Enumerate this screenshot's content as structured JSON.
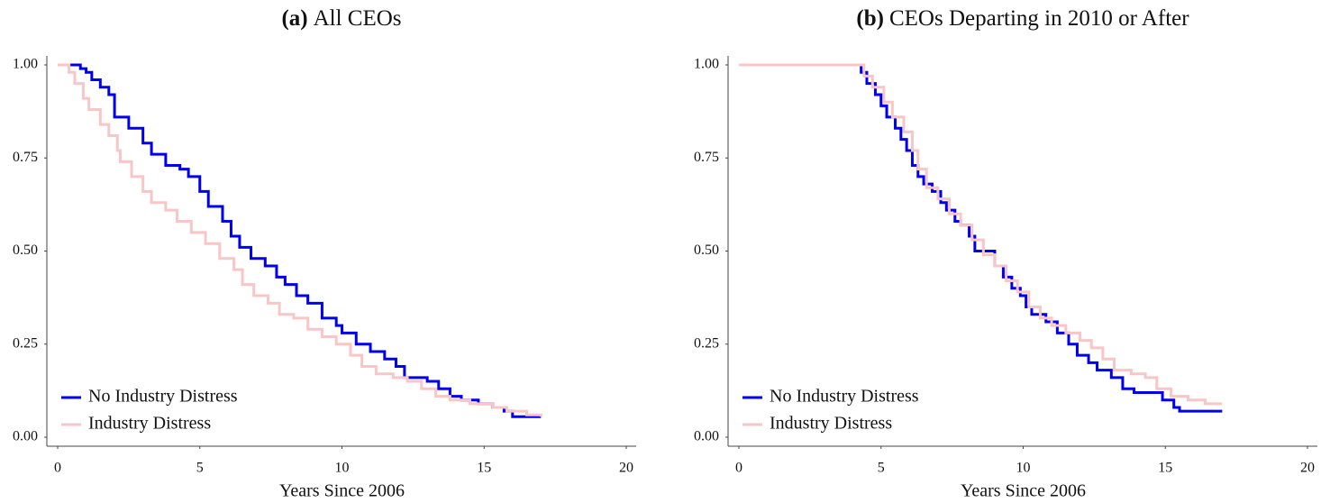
{
  "chart_data": [
    {
      "type": "line",
      "step": true,
      "panel_label": "(a)",
      "title": "All CEOs",
      "x_label": "Years Since 2006",
      "xlim": [
        0,
        20
      ],
      "xticks": [
        0,
        5,
        10,
        15,
        20
      ],
      "ylim": [
        0,
        1
      ],
      "yticks": [
        {
          "value": 0,
          "label": "0.00"
        },
        {
          "value": 0.25,
          "label": "0.25"
        },
        {
          "value": 0.5,
          "label": "0.50"
        },
        {
          "value": 0.75,
          "label": "0.75"
        },
        {
          "value": 1,
          "label": "1.00"
        }
      ],
      "legend": "lower left",
      "series": [
        {
          "name": "No Industry Distress",
          "color": "#0000ee",
          "x": [
            0,
            0.8,
            1.0,
            1.2,
            1.5,
            1.8,
            2.0,
            2.5,
            3.0,
            3.3,
            3.8,
            4.3,
            4.6,
            5.0,
            5.3,
            5.8,
            6.1,
            6.4,
            6.8,
            7.3,
            7.7,
            8.0,
            8.4,
            8.8,
            9.3,
            9.8,
            10.0,
            10.5,
            11.0,
            11.5,
            11.9,
            12.2,
            13.0,
            13.4,
            13.8,
            14.2,
            14.8,
            15.3,
            15.7,
            16.0,
            17.0
          ],
          "values": [
            1.0,
            0.99,
            0.98,
            0.96,
            0.94,
            0.92,
            0.86,
            0.83,
            0.79,
            0.76,
            0.73,
            0.72,
            0.7,
            0.66,
            0.62,
            0.58,
            0.54,
            0.51,
            0.48,
            0.46,
            0.43,
            0.41,
            0.38,
            0.36,
            0.32,
            0.3,
            0.28,
            0.25,
            0.23,
            0.21,
            0.19,
            0.16,
            0.15,
            0.13,
            0.11,
            0.1,
            0.09,
            0.08,
            0.07,
            0.055,
            0.055
          ]
        },
        {
          "name": "Industry Distress",
          "color": "#f8c6c6",
          "x": [
            0,
            0.4,
            0.6,
            0.9,
            1.1,
            1.5,
            1.8,
            2.1,
            2.2,
            2.6,
            3.0,
            3.3,
            3.8,
            4.2,
            4.7,
            5.2,
            5.7,
            6.2,
            6.5,
            6.9,
            7.4,
            7.8,
            8.3,
            8.8,
            9.3,
            9.8,
            10.3,
            10.7,
            11.2,
            11.8,
            12.3,
            12.8,
            13.3,
            13.8,
            14.5,
            15.3,
            15.8,
            16.5,
            17.0
          ],
          "values": [
            1.0,
            0.98,
            0.95,
            0.91,
            0.88,
            0.84,
            0.81,
            0.77,
            0.74,
            0.7,
            0.66,
            0.63,
            0.61,
            0.58,
            0.55,
            0.52,
            0.48,
            0.45,
            0.41,
            0.38,
            0.36,
            0.33,
            0.32,
            0.29,
            0.27,
            0.25,
            0.22,
            0.19,
            0.17,
            0.16,
            0.15,
            0.13,
            0.11,
            0.1,
            0.09,
            0.08,
            0.07,
            0.06,
            0.055
          ]
        }
      ]
    },
    {
      "type": "line",
      "step": true,
      "panel_label": "(b)",
      "title": "CEOs Departing in 2010 or After",
      "x_label": "Years Since 2006",
      "xlim": [
        0,
        20
      ],
      "xticks": [
        0,
        5,
        10,
        15,
        20
      ],
      "ylim": [
        0,
        1
      ],
      "yticks": [
        {
          "value": 0,
          "label": "0.00"
        },
        {
          "value": 0.25,
          "label": "0.25"
        },
        {
          "value": 0.5,
          "label": "0.50"
        },
        {
          "value": 0.75,
          "label": "0.75"
        },
        {
          "value": 1,
          "label": "1.00"
        }
      ],
      "legend": "lower left",
      "series": [
        {
          "name": "No Industry Distress",
          "color": "#0000ee",
          "x": [
            0,
            4.1,
            4.3,
            4.5,
            4.8,
            5.0,
            5.2,
            5.5,
            5.7,
            5.9,
            6.1,
            6.3,
            6.5,
            6.8,
            7.1,
            7.3,
            7.6,
            7.8,
            8.1,
            8.3,
            9.0,
            9.3,
            9.6,
            9.9,
            10.1,
            10.3,
            10.8,
            11.2,
            11.6,
            11.9,
            12.3,
            12.6,
            13.1,
            13.5,
            13.9,
            14.9,
            15.3,
            15.5,
            17.0
          ],
          "values": [
            1.0,
            1.0,
            0.98,
            0.95,
            0.92,
            0.89,
            0.86,
            0.83,
            0.8,
            0.77,
            0.73,
            0.7,
            0.68,
            0.66,
            0.63,
            0.61,
            0.58,
            0.57,
            0.54,
            0.5,
            0.46,
            0.43,
            0.4,
            0.38,
            0.35,
            0.33,
            0.31,
            0.28,
            0.25,
            0.22,
            0.2,
            0.18,
            0.16,
            0.13,
            0.12,
            0.1,
            0.08,
            0.07,
            0.07
          ]
        },
        {
          "name": "Industry Distress",
          "color": "#f8c6c6",
          "x": [
            0,
            4.1,
            4.4,
            4.7,
            5.1,
            5.4,
            5.8,
            6.1,
            6.3,
            6.6,
            7.0,
            7.4,
            7.8,
            8.2,
            8.6,
            9.0,
            9.4,
            9.8,
            10.2,
            10.6,
            11.0,
            11.5,
            12.0,
            12.4,
            12.8,
            13.2,
            13.8,
            14.3,
            14.7,
            15.2,
            15.8,
            16.4,
            17.0
          ],
          "values": [
            1.0,
            1.0,
            0.97,
            0.94,
            0.9,
            0.86,
            0.82,
            0.77,
            0.72,
            0.67,
            0.64,
            0.6,
            0.57,
            0.53,
            0.49,
            0.46,
            0.42,
            0.39,
            0.35,
            0.32,
            0.3,
            0.28,
            0.26,
            0.24,
            0.21,
            0.18,
            0.17,
            0.16,
            0.13,
            0.11,
            0.1,
            0.09,
            0.09
          ]
        }
      ]
    }
  ]
}
